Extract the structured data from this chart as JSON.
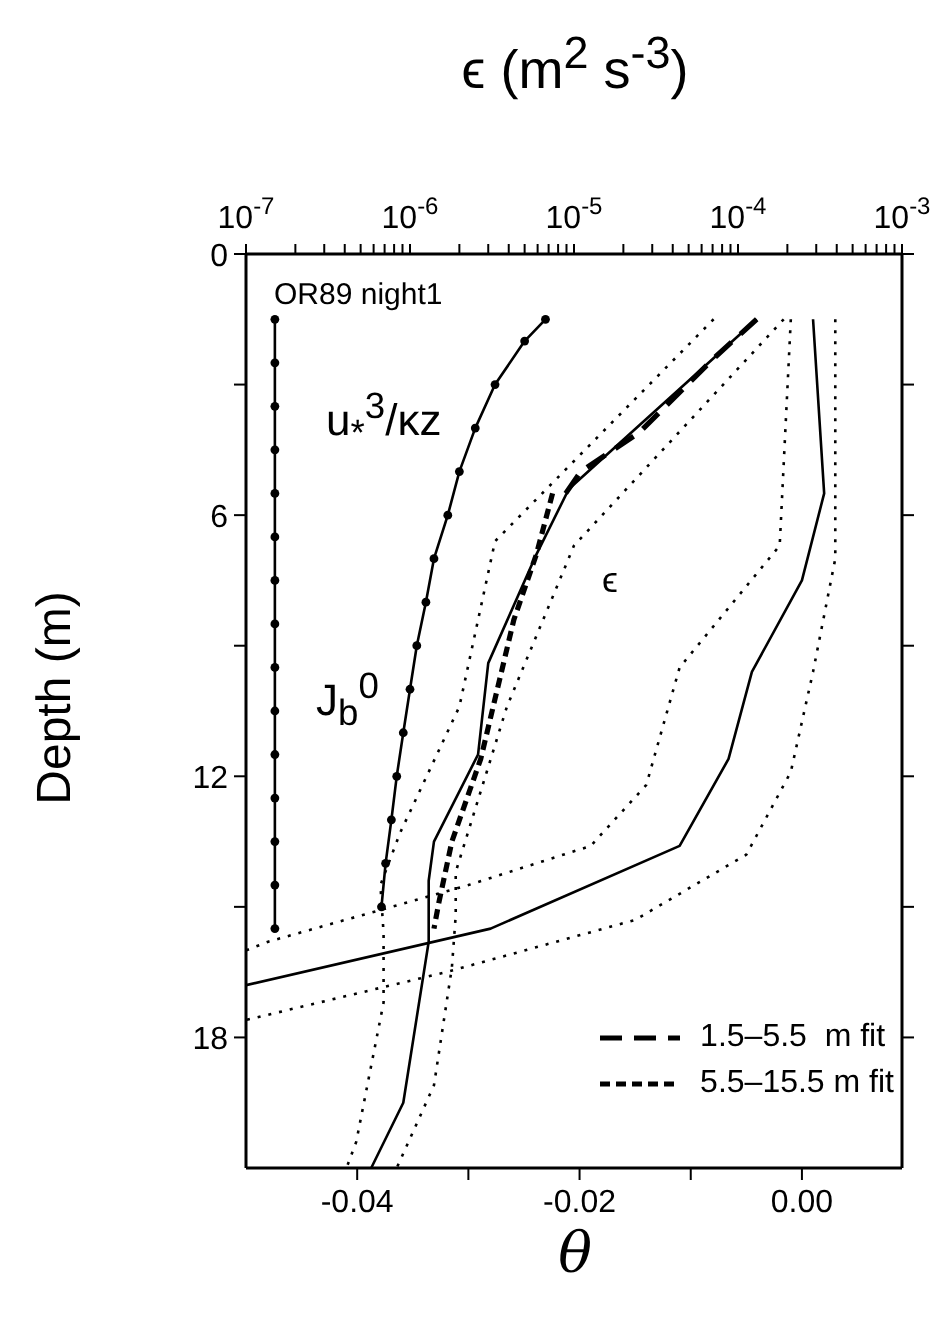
{
  "chart_data": {
    "type": "line",
    "xlabel": "θ",
    "x2label": "ϵ (m$^{2}$ s$^{-3}$)",
    "ylabel": "Depth (m)",
    "xlim": [
      -0.05,
      0.009
    ],
    "xticks": [
      -0.04,
      {
        "value": -0.03,
        "label": null
      },
      -0.02,
      {
        "value": -0.01,
        "label": null
      },
      {
        "value": 0,
        "label": "0.00"
      }
    ],
    "x2lim": [
      1e-07,
      0.001
    ],
    "x2ticks": [
      {
        "value": 1e-07,
        "label": "10$^{-7}$"
      },
      {
        "value": 2e-07,
        "label": null
      },
      {
        "value": 3e-07,
        "label": null
      },
      {
        "value": 4e-07,
        "label": null
      },
      {
        "value": 5e-07,
        "label": null
      },
      {
        "value": 6e-07,
        "label": null
      },
      {
        "value": 7e-07,
        "label": null
      },
      {
        "value": 8e-07,
        "label": null
      },
      {
        "value": 9e-07,
        "label": null
      },
      {
        "value": 1e-06,
        "label": "10$^{-6}$"
      },
      {
        "value": 2e-06,
        "label": null
      },
      {
        "value": 3e-06,
        "label": null
      },
      {
        "value": 4e-06,
        "label": null
      },
      {
        "value": 5e-06,
        "label": null
      },
      {
        "value": 6e-06,
        "label": null
      },
      {
        "value": 7e-06,
        "label": null
      },
      {
        "value": 8e-06,
        "label": null
      },
      {
        "value": 9e-06,
        "label": null
      },
      {
        "value": 1e-05,
        "label": "10$^{-5}$"
      },
      {
        "value": 2e-05,
        "label": null
      },
      {
        "value": 3e-05,
        "label": null
      },
      {
        "value": 4e-05,
        "label": null
      },
      {
        "value": 5e-05,
        "label": null
      },
      {
        "value": 6e-05,
        "label": null
      },
      {
        "value": 7e-05,
        "label": null
      },
      {
        "value": 8e-05,
        "label": null
      },
      {
        "value": 9e-05,
        "label": null
      },
      {
        "value": 0.0001,
        "label": "10$^{-4}$"
      },
      {
        "value": 0.0002,
        "label": null
      },
      {
        "value": 0.0003,
        "label": null
      },
      {
        "value": 0.0004,
        "label": null
      },
      {
        "value": 0.0005,
        "label": null
      },
      {
        "value": 0.0006,
        "label": null
      },
      {
        "value": 0.0007,
        "label": null
      },
      {
        "value": 0.0008,
        "label": null
      },
      {
        "value": 0.0009,
        "label": null
      },
      {
        "value": 0.001,
        "label": "10$^{-3}$"
      }
    ],
    "log": "x2",
    "ylim": [
      21,
      0
    ],
    "yticks": [
      0,
      {
        "value": 3,
        "label": null
      },
      6,
      {
        "value": 9,
        "label": null
      },
      12,
      {
        "value": 15,
        "label": null
      },
      18
    ],
    "grid": false,
    "legend": "bottom right",
    "annotations": [
      "OR89 night1",
      "u$_{*}$$^{3}$/κz",
      "J$_{b}$$^{0}$",
      "ϵ"
    ],
    "series": [
      {
        "axis": "x2",
        "color": "#000000",
        "marker": "circle",
        "line_style": "solid",
        "x": [
          1.5e-07,
          1.5e-07,
          1.5e-07,
          1.5e-07,
          1.5e-07,
          1.5e-07,
          1.5e-07,
          1.5e-07,
          1.5e-07,
          1.5e-07,
          1.5e-07,
          1.5e-07,
          1.5e-07,
          1.5e-07,
          1.5e-07
        ],
        "values": [
          1.5,
          2.5,
          3.5,
          4.5,
          5.5,
          6.5,
          7.5,
          8.5,
          9.5,
          10.5,
          11.5,
          12.5,
          13.5,
          14.5,
          15.5
        ]
      },
      {
        "axis": "x2",
        "color": "#000000",
        "marker": "circle",
        "line_style": "solid",
        "x": [
          6.7e-06,
          5e-06,
          3.3e-06,
          2.5e-06,
          2e-06,
          1.7e-06,
          1.4e-06,
          1.25e-06,
          1.1e-06,
          1e-06,
          9.1e-07,
          8.3e-07,
          7.7e-07,
          7.1e-07,
          6.7e-07
        ],
        "values": [
          1.5,
          2,
          3,
          4,
          5,
          6,
          7,
          8,
          9,
          10,
          11,
          12,
          13,
          14,
          15
        ]
      },
      {
        "axis": "x2",
        "color": "#000000",
        "marker": "none",
        "line_style": "solid",
        "x": [
          0.00013,
          9.3e-06,
          5.9e-06,
          3e-06,
          2.6e-06,
          1.4e-06,
          1.3e-06,
          1.3e-06,
          9.1e-07,
          5.8e-07
        ],
        "values": [
          1.5,
          5.4,
          6.9,
          9.4,
          11.5,
          13.5,
          14.4,
          15.8,
          19.5,
          21
        ]
      },
      {
        "axis": "x2",
        "color": "#000000",
        "marker": "none",
        "line_style": "dotted",
        "x": [
          7.1e-05,
          3.3e-06,
          2e-06,
          8.7e-07,
          6.6e-07,
          6.9e-07,
          6.9e-07,
          4.7e-07,
          4.1e-07
        ],
        "values": [
          1.5,
          6.6,
          10.4,
          13.3,
          14.5,
          15.6,
          17.2,
          20.4,
          21
        ]
      },
      {
        "axis": "x2",
        "color": "#000000",
        "marker": "none",
        "line_style": "dotted",
        "x": [
          0.00019,
          1e-05,
          3.9e-06,
          1.9e-06,
          1.9e-06,
          1.8e-06,
          1.4e-06,
          8.3e-07
        ],
        "values": [
          1.5,
          6.7,
          10.4,
          14.2,
          15.2,
          16.4,
          19.1,
          21
        ]
      },
      {
        "axis": "x2",
        "name": "1.5–5.5  m fit",
        "color": "#000000",
        "marker": "none",
        "line_style": "dashed",
        "x": [
          0.00013,
          7.1e-05,
          2.5e-05,
          1.1e-05,
          8.9e-06
        ],
        "values": [
          1.5,
          2.4,
          4.1,
          5.0,
          5.5
        ]
      },
      {
        "axis": "x2",
        "name": "5.5–15.5 m fit",
        "color": "#000000",
        "marker": "none",
        "line_style": "dashed",
        "x": [
          7.4e-06,
          5.9e-06,
          4.3e-06,
          2.7e-06,
          1.8e-06,
          1.5e-06,
          1.4e-06
        ],
        "values": [
          5.5,
          6.9,
          8.4,
          11.6,
          13.5,
          14.9,
          15.5
        ]
      },
      {
        "color": "#000000",
        "marker": "none",
        "line_style": "solid",
        "x": [
          0.001,
          0.002,
          0.0,
          -0.0045,
          -0.0066,
          -0.011,
          -0.028,
          -0.05
        ],
        "values": [
          1.5,
          5.5,
          7.5,
          9.6,
          11.6,
          13.6,
          15.5,
          16.8
        ]
      },
      {
        "color": "#000000",
        "marker": "none",
        "line_style": "dotted",
        "x": [
          -0.001,
          -0.002,
          -0.011,
          -0.012,
          -0.014,
          -0.019,
          -0.03,
          -0.048,
          -0.05
        ],
        "values": [
          1.5,
          6.7,
          9.5,
          10.4,
          12.2,
          13.6,
          14.5,
          15.8,
          16.0
        ]
      },
      {
        "color": "#000000",
        "marker": "none",
        "line_style": "dotted",
        "x": [
          0.003,
          0.003,
          0.001,
          -0.001,
          -0.005,
          -0.015,
          -0.032,
          -0.05
        ],
        "values": [
          1.5,
          7.0,
          9.6,
          11.9,
          13.8,
          15.3,
          16.5,
          17.6
        ]
      }
    ]
  }
}
